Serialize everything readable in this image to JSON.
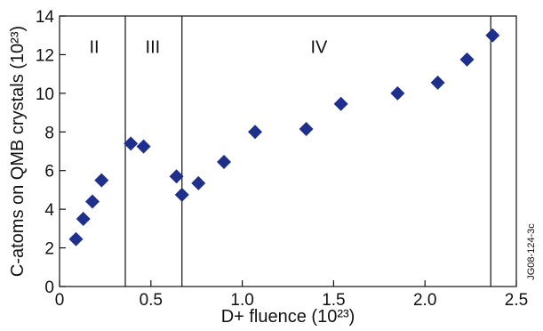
{
  "chart_data": {
    "type": "scatter",
    "xlabel": "D+ fluence (10²³)",
    "ylabel": "C-atoms on QMB crystals (10²³)",
    "xlim": [
      0,
      2.5
    ],
    "ylim": [
      0,
      14
    ],
    "x_ticks": [
      "0",
      "0.5",
      "1.0",
      "1.5",
      "2.0",
      "2.5"
    ],
    "x_tick_values": [
      0,
      0.5,
      1.0,
      1.5,
      2.0,
      2.5
    ],
    "y_ticks": [
      "0",
      "2",
      "4",
      "6",
      "8",
      "10",
      "12",
      "14"
    ],
    "y_tick_values": [
      0,
      2,
      4,
      6,
      8,
      10,
      12,
      14
    ],
    "grid": false,
    "marker": "diamond",
    "marker_color": "#1f2f8c",
    "dividers_x": [
      0.36,
      0.67,
      2.36
    ],
    "regions": [
      {
        "label": "II",
        "x": 0.19,
        "y": 12.1
      },
      {
        "label": "III",
        "x": 0.51,
        "y": 12.1
      },
      {
        "label": "IV",
        "x": 1.42,
        "y": 12.1
      }
    ],
    "side_code": "JG08-124-3c",
    "points": [
      {
        "x": 0.09,
        "y": 2.45
      },
      {
        "x": 0.13,
        "y": 3.5
      },
      {
        "x": 0.18,
        "y": 4.4
      },
      {
        "x": 0.23,
        "y": 5.5
      },
      {
        "x": 0.39,
        "y": 7.4
      },
      {
        "x": 0.46,
        "y": 7.25
      },
      {
        "x": 0.64,
        "y": 5.7
      },
      {
        "x": 0.67,
        "y": 4.75
      },
      {
        "x": 0.76,
        "y": 5.35
      },
      {
        "x": 0.9,
        "y": 6.45
      },
      {
        "x": 1.07,
        "y": 8.0
      },
      {
        "x": 1.35,
        "y": 8.15
      },
      {
        "x": 1.54,
        "y": 9.45
      },
      {
        "x": 1.85,
        "y": 10.0
      },
      {
        "x": 2.07,
        "y": 10.55
      },
      {
        "x": 2.23,
        "y": 11.75
      },
      {
        "x": 2.37,
        "y": 13.0
      }
    ]
  }
}
